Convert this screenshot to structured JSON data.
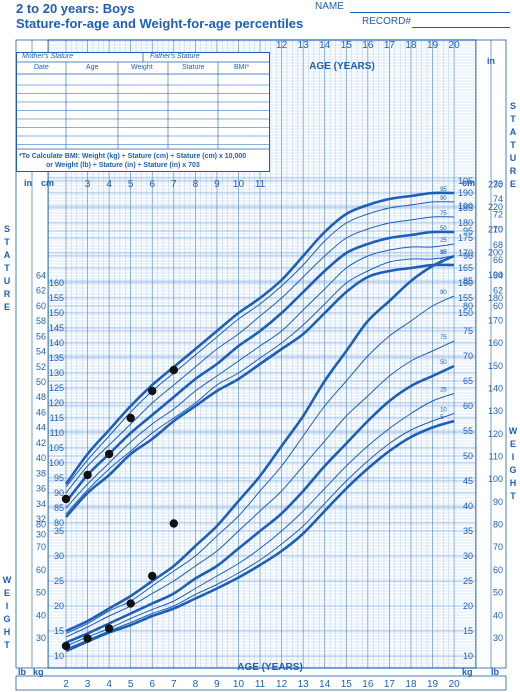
{
  "header": {
    "title_line1": "2 to 20 years: Boys",
    "title_line2": "Stature-for-age and Weight-for-age percentiles",
    "name_label": "NAME",
    "record_label": "RECORD#"
  },
  "bmi_box": {
    "mothers_stature": "Mother's Stature",
    "fathers_stature": "Father's Stature",
    "columns": [
      "Date",
      "Age",
      "Weight",
      "Stature",
      "BMI*"
    ],
    "note_line1": "*To Calculate BMI: Weight (kg) ÷ Stature (cm) ÷ Stature (cm) x 10,000",
    "note_line2": "or Weight (lb) ÷ Stature (in) ÷ Stature (in) x 703"
  },
  "colors": {
    "ink": "#1d5fb8",
    "grid_light": "#9ec3ea",
    "grid_dark": "#5d93d6",
    "point": "#111111"
  },
  "chart_data": {
    "type": "line",
    "title": "Stature-for-age and Weight-for-age percentiles",
    "xlabel": "AGE (YEARS)",
    "x_ticks": [
      2,
      3,
      4,
      5,
      6,
      7,
      8,
      9,
      10,
      11,
      12,
      13,
      14,
      15,
      16,
      17,
      18,
      19,
      20
    ],
    "xlim": [
      2,
      20
    ],
    "left_labels": {
      "stature_word": "STATURE",
      "weight_word": "WEIGHT",
      "in": "in",
      "cm": "cm",
      "kg": "kg",
      "lb": "lb"
    },
    "right_labels": {
      "stature_word": "STATURE",
      "weight_word": "WEIGHT",
      "in": "in",
      "cm": "cm",
      "kg": "kg",
      "lb": "lb"
    },
    "stature": {
      "ylabel": "Stature",
      "cm_ticks": [
        80,
        85,
        90,
        95,
        100,
        105,
        110,
        115,
        120,
        125,
        130,
        135,
        140,
        145,
        150,
        155,
        160,
        165,
        170,
        175,
        180,
        185,
        190
      ],
      "in_ticks": [
        30,
        32,
        34,
        36,
        38,
        40,
        42,
        44,
        46,
        48,
        50,
        52,
        54,
        56,
        58,
        60,
        62,
        64,
        66,
        68,
        70,
        72,
        74,
        76
      ],
      "x": [
        2,
        3,
        4,
        5,
        6,
        7,
        8,
        9,
        10,
        11,
        12,
        13,
        14,
        15,
        16,
        17,
        18,
        19,
        20
      ],
      "series": [
        {
          "name": "95",
          "values": [
            93,
            103,
            111,
            119,
            126,
            132,
            138,
            144,
            150,
            155,
            161,
            169,
            177,
            183,
            186,
            188,
            189,
            190,
            190
          ]
        },
        {
          "name": "90",
          "values": [
            92,
            101,
            109,
            117,
            124,
            130,
            136,
            142,
            148,
            153,
            159,
            166,
            174,
            180,
            183,
            185,
            186,
            187,
            187
          ]
        },
        {
          "name": "75",
          "values": [
            90,
            99,
            106,
            113,
            120,
            126,
            132,
            138,
            143,
            149,
            155,
            162,
            169,
            175,
            178,
            180,
            181,
            182,
            182
          ]
        },
        {
          "name": "50",
          "values": [
            87,
            96,
            103,
            110,
            116,
            122,
            128,
            133,
            139,
            144,
            150,
            157,
            164,
            170,
            173,
            175,
            176,
            177,
            177
          ]
        },
        {
          "name": "25",
          "values": [
            85,
            93,
            100,
            107,
            113,
            118,
            124,
            129,
            134,
            139,
            144,
            151,
            158,
            165,
            169,
            171,
            172,
            172,
            173
          ]
        },
        {
          "name": "10",
          "values": [
            83,
            91,
            98,
            104,
            110,
            115,
            120,
            126,
            130,
            135,
            140,
            146,
            153,
            160,
            164,
            167,
            168,
            168,
            169
          ]
        },
        {
          "name": "5",
          "values": [
            82,
            90,
            96,
            103,
            108,
            114,
            119,
            124,
            128,
            133,
            138,
            143,
            150,
            157,
            162,
            164,
            165,
            166,
            166
          ]
        }
      ],
      "points": [
        {
          "x": 2.0,
          "y": 88
        },
        {
          "x": 3.0,
          "y": 96
        },
        {
          "x": 4.0,
          "y": 103
        },
        {
          "x": 5.0,
          "y": 115
        },
        {
          "x": 6.0,
          "y": 124
        },
        {
          "x": 7.0,
          "y": 131
        }
      ]
    },
    "weight": {
      "ylabel": "Weight",
      "kg_ticks": [
        10,
        15,
        20,
        25,
        30,
        35,
        40,
        45,
        50,
        55,
        60,
        65,
        70,
        75,
        80,
        85,
        90,
        95,
        100,
        105
      ],
      "lb_ticks": [
        30,
        40,
        50,
        60,
        70,
        80,
        90,
        100,
        110,
        120,
        130,
        140,
        150,
        160,
        170,
        180,
        190,
        200,
        210,
        220,
        230
      ],
      "x": [
        2,
        3,
        4,
        5,
        6,
        7,
        8,
        9,
        10,
        11,
        12,
        13,
        14,
        15,
        16,
        17,
        18,
        19,
        20
      ],
      "series": [
        {
          "name": "95",
          "values": [
            15,
            17,
            19.5,
            22,
            25,
            28,
            32,
            36,
            41,
            46,
            52,
            58,
            65,
            71,
            77,
            81,
            85,
            88,
            90
          ]
        },
        {
          "name": "90",
          "values": [
            14.5,
            16.5,
            19,
            21,
            24,
            27,
            30,
            34,
            38,
            43,
            48,
            54,
            60,
            65,
            70,
            74,
            77,
            80,
            82
          ]
        },
        {
          "name": "75",
          "values": [
            13.8,
            15.8,
            18,
            20,
            22.5,
            25,
            28,
            31,
            35,
            39,
            43,
            48,
            53,
            58,
            62,
            66,
            69,
            71,
            73
          ]
        },
        {
          "name": "50",
          "values": [
            12.7,
            14.5,
            16.5,
            18.5,
            20.5,
            22.5,
            25.5,
            28,
            31.5,
            35,
            38.5,
            43,
            48,
            52.5,
            57,
            61,
            64,
            66,
            68
          ]
        },
        {
          "name": "25",
          "values": [
            12,
            13.8,
            15.5,
            17.5,
            19.3,
            21,
            23.5,
            26,
            28.5,
            31.5,
            35,
            39,
            43.5,
            48,
            52,
            55.5,
            58.5,
            61,
            62.5
          ]
        },
        {
          "name": "10",
          "values": [
            11.4,
            13.2,
            15,
            16.7,
            18.5,
            20,
            22.3,
            24.3,
            26.6,
            29.2,
            32.4,
            36,
            40.5,
            45,
            49,
            52.5,
            55.2,
            57,
            58.5
          ]
        },
        {
          "name": "5",
          "values": [
            11,
            12.9,
            14.7,
            16.2,
            18,
            19.5,
            21.5,
            23.5,
            25.7,
            28.2,
            31,
            34.5,
            39,
            43.5,
            47.5,
            51,
            53.8,
            55.7,
            57
          ]
        }
      ],
      "points": [
        {
          "x": 2.0,
          "y": 12
        },
        {
          "x": 3.0,
          "y": 13.5
        },
        {
          "x": 4.0,
          "y": 15.5
        },
        {
          "x": 5.0,
          "y": 20.5
        },
        {
          "x": 6.0,
          "y": 26
        },
        {
          "x": 7.0,
          "y": 36.5
        }
      ]
    }
  }
}
